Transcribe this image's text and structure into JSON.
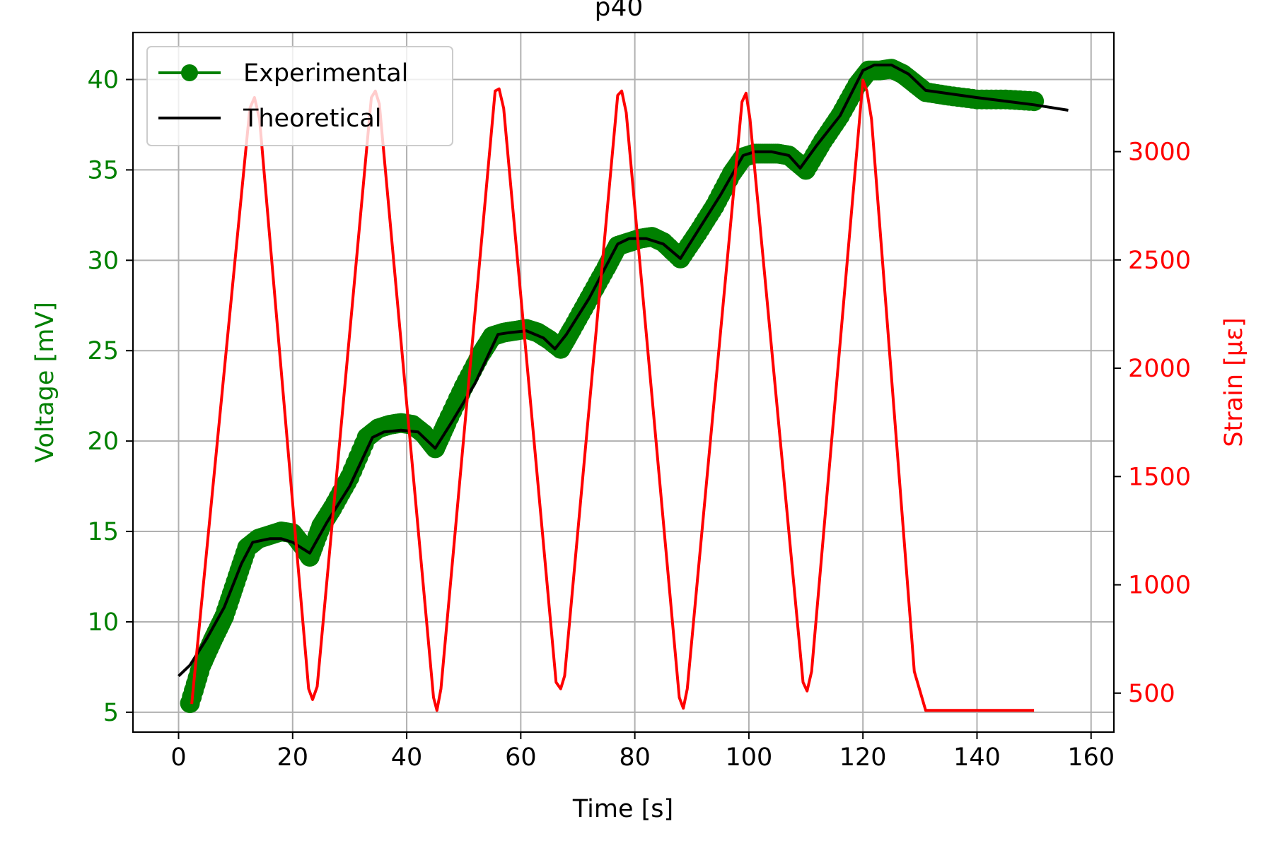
{
  "chart_data": {
    "type": "line",
    "title": "p40",
    "xlabel": "Time [s]",
    "ylabel_left": "Voltage [mV]",
    "ylabel_right": "Strain [με]",
    "xlim": [
      -8,
      164
    ],
    "ylim_left": [
      3.9,
      42.6
    ],
    "ylim_right": [
      320,
      3550
    ],
    "x_ticks": [
      0,
      20,
      40,
      60,
      80,
      100,
      120,
      140,
      160
    ],
    "y_ticks_left": [
      5,
      10,
      15,
      20,
      25,
      30,
      35,
      40
    ],
    "y_ticks_right": [
      500,
      1000,
      1500,
      2000,
      2500,
      3000
    ],
    "grid": true,
    "legend_position": "upper-left",
    "legend_entries": [
      "Experimental",
      "Theoretical"
    ],
    "colors": {
      "experimental": "#008000",
      "theoretical": "#000000",
      "strain": "#ff0000",
      "grid": "#b0b0b0",
      "left_axis": "#008000",
      "right_axis": "#ff0000"
    },
    "series": [
      {
        "name": "Experimental",
        "axis": "left",
        "style": "line-markers",
        "x": [
          2,
          4,
          6,
          8,
          10,
          12,
          14,
          16,
          18,
          20,
          22,
          23,
          25,
          27,
          30,
          33,
          35,
          37,
          39,
          41,
          43,
          45,
          47,
          50,
          53,
          55,
          57,
          59,
          61,
          63,
          65,
          67,
          69,
          72,
          75,
          77,
          79,
          81,
          83,
          85,
          88,
          91,
          94,
          97,
          99,
          101,
          103,
          105,
          107,
          110,
          113,
          116,
          119,
          121,
          123,
          125,
          127,
          129,
          131,
          135,
          140,
          145,
          150
        ],
        "y": [
          5.5,
          7.6,
          9.0,
          10.3,
          12.2,
          14.1,
          14.6,
          14.8,
          15.0,
          14.9,
          14.1,
          13.6,
          15.3,
          16.3,
          18.0,
          20.2,
          20.7,
          20.9,
          21.0,
          20.9,
          20.4,
          19.6,
          21.0,
          23.0,
          24.8,
          25.8,
          26.0,
          26.1,
          26.2,
          26.0,
          25.6,
          25.1,
          26.2,
          27.9,
          29.6,
          30.8,
          31.0,
          31.2,
          31.3,
          31.0,
          30.1,
          31.5,
          33.0,
          34.8,
          35.7,
          35.9,
          35.9,
          35.9,
          35.8,
          35.0,
          36.6,
          38.0,
          39.7,
          40.5,
          40.5,
          40.6,
          40.3,
          39.8,
          39.3,
          39.1,
          38.9,
          38.9,
          38.8
        ]
      },
      {
        "name": "Theoretical",
        "axis": "left",
        "style": "line",
        "x": [
          0,
          2,
          5,
          8,
          11,
          13,
          16,
          18,
          20,
          23,
          26,
          30,
          34,
          36,
          39,
          42,
          45,
          48,
          52,
          56,
          58,
          61,
          64,
          66,
          68,
          72,
          77,
          79,
          82,
          85,
          88,
          91,
          95,
          99,
          101,
          104,
          107,
          109,
          112,
          116,
          120,
          122,
          125,
          128,
          131,
          140,
          150,
          156
        ],
        "y": [
          7.0,
          7.6,
          9.1,
          10.8,
          13.2,
          14.4,
          14.6,
          14.6,
          14.4,
          13.8,
          15.5,
          17.5,
          20.2,
          20.5,
          20.6,
          20.5,
          19.6,
          21.1,
          23.2,
          25.9,
          26.0,
          26.1,
          25.7,
          25.1,
          25.9,
          27.9,
          30.9,
          31.2,
          31.2,
          30.9,
          30.1,
          31.6,
          33.6,
          35.8,
          36.0,
          36.0,
          35.8,
          35.1,
          36.4,
          38.0,
          40.5,
          40.8,
          40.8,
          40.3,
          39.4,
          39.0,
          38.6,
          38.3
        ]
      },
      {
        "name": "Strain",
        "axis": "right",
        "style": "line",
        "x": [
          2.3,
          12.5,
          13.3,
          14.2,
          22.8,
          23.5,
          24.3,
          33.8,
          34.5,
          35.2,
          44.7,
          45.3,
          46.0,
          55.5,
          56.2,
          57.0,
          66.2,
          67.0,
          67.7,
          77.0,
          77.7,
          78.5,
          87.8,
          88.5,
          89.2,
          98.8,
          99.5,
          100.2,
          109.5,
          110.2,
          111.0,
          120.0,
          120.7,
          121.5,
          129.0,
          131.0,
          150.0
        ],
        "y": [
          450,
          3200,
          3250,
          3150,
          520,
          470,
          530,
          3250,
          3280,
          3220,
          480,
          420,
          520,
          3280,
          3290,
          3200,
          550,
          520,
          580,
          3260,
          3280,
          3180,
          480,
          430,
          520,
          3230,
          3270,
          3150,
          550,
          510,
          600,
          3330,
          3280,
          3150,
          600,
          420,
          420
        ]
      }
    ]
  }
}
